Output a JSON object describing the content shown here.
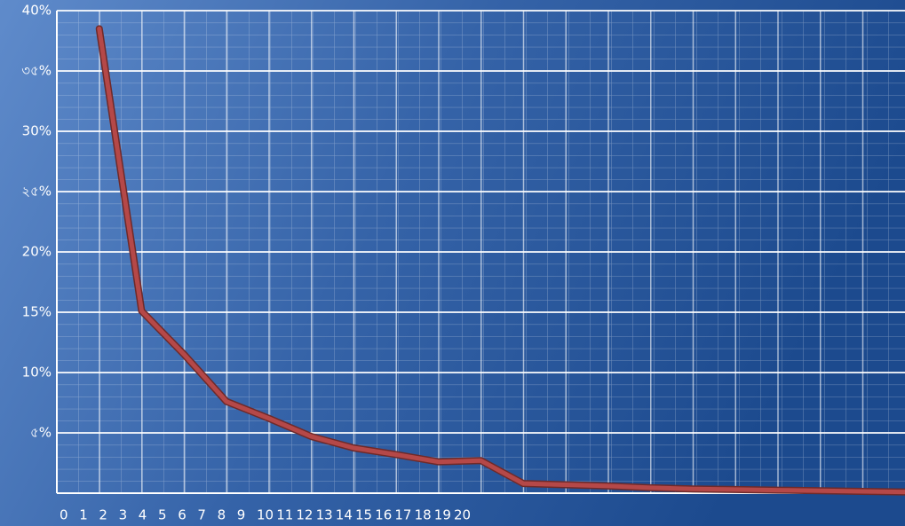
{
  "chart_data": {
    "type": "line",
    "x": [
      1,
      2,
      3,
      4,
      5,
      6,
      7,
      8,
      9,
      10,
      11,
      12,
      13,
      14,
      15,
      16,
      17,
      18,
      19,
      20
    ],
    "series": [
      {
        "color": "#b54848",
        "values": [
          38.5,
          15.1,
          11.5,
          7.6,
          6.2,
          4.7,
          3.75,
          3.2,
          2.6,
          2.7,
          0.8,
          0.7,
          0.6,
          0.45,
          0.35,
          0.3,
          0.25,
          0.2,
          0.15,
          0.1
        ]
      }
    ],
    "xlim": [
      0,
      20
    ],
    "x_labels": [
      "0",
      "1",
      "2",
      "3",
      "4",
      "5",
      "6",
      "7",
      "8",
      "9",
      "10",
      "11",
      "12",
      "13",
      "14",
      "15",
      "16",
      "17",
      "18",
      "19",
      "20"
    ],
    "ylim": [
      0,
      40
    ],
    "yticks": [
      {
        "value": 5,
        "label": "৫%"
      },
      {
        "value": 10,
        "label": "10%"
      },
      {
        "value": 15,
        "label": "15%"
      },
      {
        "value": 20,
        "label": "20%"
      },
      {
        "value": 25,
        "label": "২৫%"
      },
      {
        "value": 30,
        "label": "30%"
      },
      {
        "value": 35,
        "label": "৩৫%"
      },
      {
        "value": 40,
        "label": "40%"
      }
    ],
    "grid": true
  }
}
